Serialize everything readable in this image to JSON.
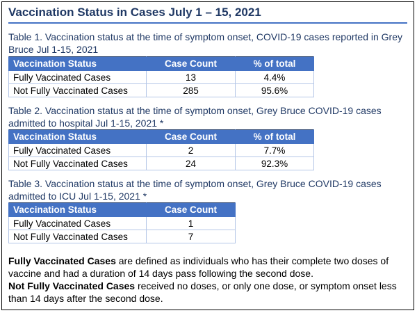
{
  "title": "Vaccination Status in Cases July 1 – 15, 2021",
  "tables": [
    {
      "caption": "Table 1. Vaccination status at the time of symptom onset, COVID-19 cases reported in Grey Bruce Jul 1-15, 2021",
      "headers": [
        "Vaccination Status",
        "Case Count",
        "% of total"
      ],
      "rows": [
        [
          "Fully Vaccinated Cases",
          "13",
          "4.4%"
        ],
        [
          "Not Fully Vaccinated Cases",
          "285",
          "95.6%"
        ]
      ]
    },
    {
      "caption": "Table 2. Vaccination status at the time of symptom onset, Grey Bruce COVID-19 cases admitted to hospital Jul 1-15, 2021 *",
      "headers": [
        "Vaccination Status",
        "Case Count",
        "% of total"
      ],
      "rows": [
        [
          "Fully Vaccinated Cases",
          "2",
          "7.7%"
        ],
        [
          "Not Fully Vaccinated Cases",
          "24",
          "92.3%"
        ]
      ]
    },
    {
      "caption": "Table 3. Vaccination status at the time of symptom onset, Grey Bruce COVID-19 cases admitted to ICU Jul 1-15, 2021 *",
      "headers": [
        "Vaccination Status",
        "Case Count"
      ],
      "rows": [
        [
          "Fully Vaccinated Cases",
          "1"
        ],
        [
          "Not Fully Vaccinated Cases",
          "7"
        ]
      ]
    }
  ],
  "definitions": {
    "fully_term": "Fully Vaccinated Cases",
    "fully_text": " are defined as individuals who has their complete two doses of vaccine and had a duration of 14 days pass following the second dose.",
    "not_fully_term": "Not Fully Vaccinated Cases",
    "not_fully_text": " received no doses, or only one dose, or symptom onset less than 14 days after the second dose."
  },
  "colors": {
    "title": "#1f3864",
    "header_fill": "#4472c4",
    "border": "#1f3864"
  }
}
